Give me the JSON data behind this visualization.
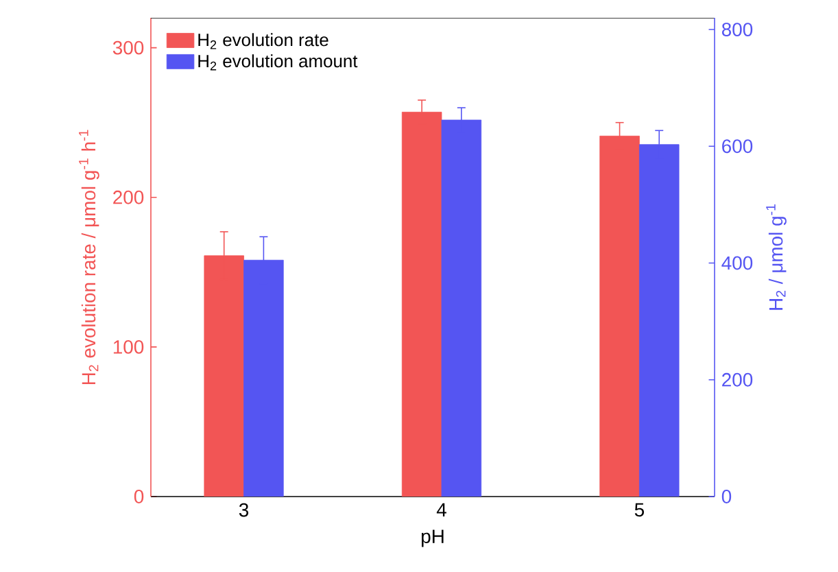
{
  "chart_data": {
    "type": "bar",
    "xlabel": "pH",
    "ylabel": "H$_{2}$ evolution rate / μmol g$^{-1}$ h$^{-1}$",
    "y2label": "H$_{2}$ / μmol g$^{-1}$",
    "categories": [
      "3",
      "4",
      "5"
    ],
    "series": [
      {
        "name": "H$_{2}$ evolution rate",
        "color": "#f25555",
        "values": [
          161,
          257,
          241
        ],
        "errors": [
          16,
          8,
          9
        ]
      },
      {
        "name": "H$_{2}$ evolution amount",
        "color": "#5555f2",
        "axis": "y2",
        "values": [
          405,
          645,
          603
        ],
        "errors": [
          40,
          21,
          24
        ]
      }
    ],
    "ylim": [
      0,
      320
    ],
    "yticks": [
      0,
      100,
      200,
      300
    ],
    "y2lim": [
      0,
      820
    ],
    "y2ticks": [
      0,
      200,
      400,
      600,
      800
    ],
    "legend": "top left",
    "grid": false
  }
}
